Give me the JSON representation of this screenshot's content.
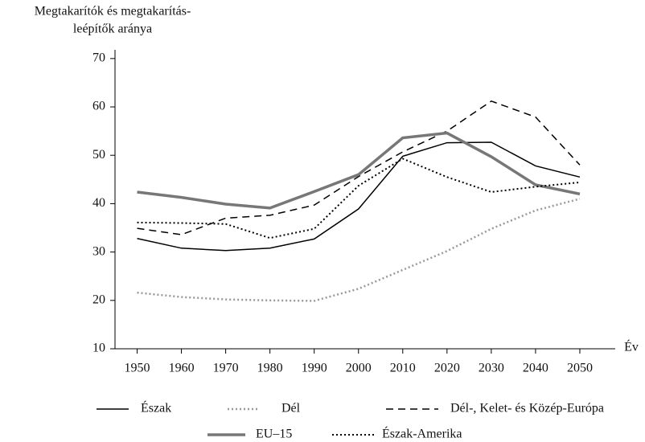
{
  "chart_data": {
    "type": "line",
    "y_label": [
      "Megtakarítók és megtakarítás-",
      "leépítők aránya"
    ],
    "x_label": "Év",
    "x": [
      1950,
      1960,
      1970,
      1980,
      1990,
      2000,
      2010,
      2020,
      2030,
      2040,
      2050
    ],
    "xlim": [
      1945,
      2058
    ],
    "xticks": [
      1950,
      1960,
      1970,
      1980,
      1990,
      2000,
      2010,
      2020,
      2030,
      2040,
      2050
    ],
    "ylim": [
      10,
      71.8
    ],
    "yticks": [
      10,
      20,
      30,
      40,
      50,
      60,
      70
    ],
    "series": [
      {
        "name": "Észak",
        "color": "#000000",
        "dash": "solid",
        "width": 1.5,
        "values": [
          32.8,
          30.8,
          30.3,
          30.8,
          32.7,
          38.9,
          49.8,
          52.6,
          52.7,
          47.8,
          45.5
        ]
      },
      {
        "name": "Dél",
        "color": "#999999",
        "dash": "dotted",
        "width": 2.5,
        "values": [
          21.6,
          20.7,
          20.2,
          20.0,
          19.9,
          22.4,
          26.3,
          30.2,
          34.8,
          38.6,
          41.0
        ]
      },
      {
        "name": "Dél-, Kelet- és Közép-Európa",
        "color": "#000000",
        "dash": "dashed",
        "width": 1.5,
        "values": [
          34.9,
          33.6,
          37.0,
          37.6,
          39.7,
          45.6,
          50.7,
          55.0,
          61.2,
          57.9,
          48.0
        ]
      },
      {
        "name": "EU–15",
        "color": "#777777",
        "dash": "solid",
        "width": 3.5,
        "values": [
          42.4,
          41.3,
          39.9,
          39.1,
          42.5,
          46.0,
          53.6,
          54.6,
          49.7,
          43.9,
          42.0
        ]
      },
      {
        "name": "Észak-Amerika",
        "color": "#000000",
        "dash": "dotted",
        "width": 2,
        "values": [
          36.1,
          36.0,
          35.8,
          32.9,
          34.8,
          43.7,
          49.3,
          45.5,
          42.4,
          43.5,
          44.4
        ]
      }
    ]
  }
}
